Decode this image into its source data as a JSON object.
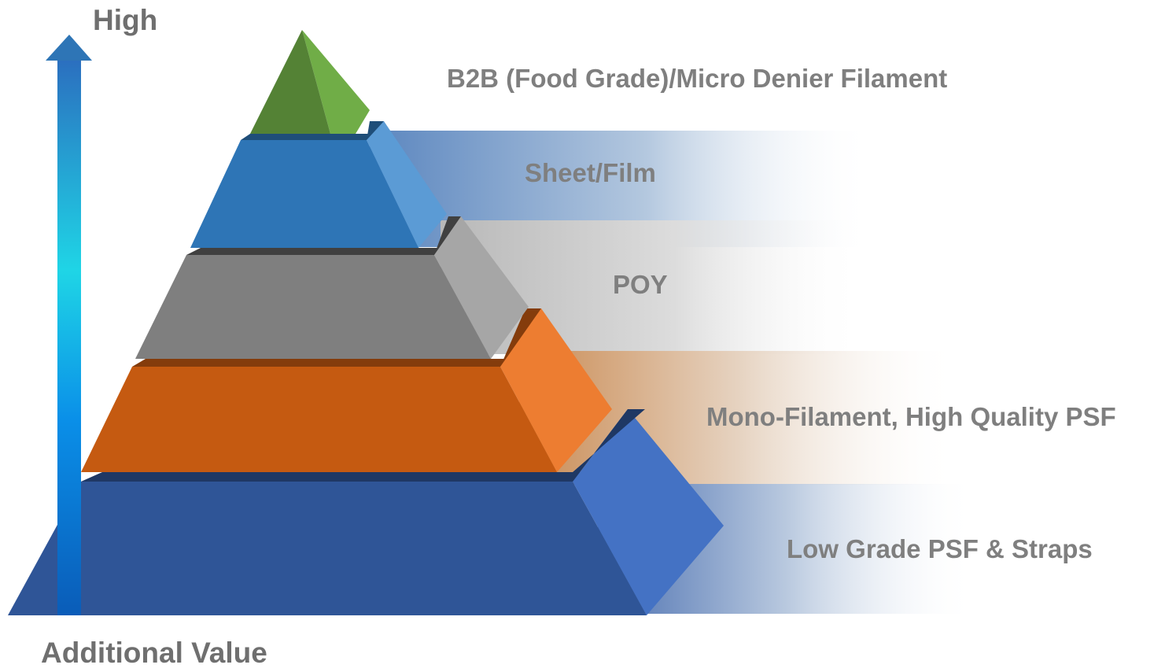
{
  "axis": {
    "high_label": "High",
    "bottom_label": "Additional Value"
  },
  "tiers": [
    {
      "label": "B2B (Food Grade)/Micro Denier Filament",
      "color": "#548235",
      "side_color": "#70ad47"
    },
    {
      "label": "Sheet/Film",
      "color": "#2e75b6",
      "side_color": "#5b9bd5"
    },
    {
      "label": "POY",
      "color": "#7f7f7f",
      "side_color": "#a6a6a6"
    },
    {
      "label": "Mono-Filament, High Quality PSF",
      "color": "#c55a11",
      "side_color": "#ed7d31"
    },
    {
      "label": "Low Grade PSF & Straps",
      "color": "#2f5597",
      "side_color": "#4472c4"
    }
  ]
}
